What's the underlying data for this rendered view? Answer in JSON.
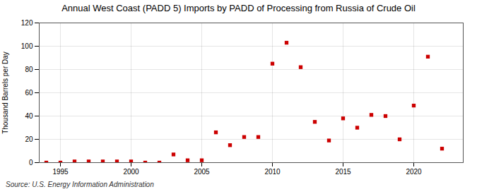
{
  "chart_data": {
    "type": "scatter",
    "title": "Annual West Coast (PADD 5) Imports by PADD of Processing from Russia of Crude Oil",
    "ylabel": "Thousand Barrels per Day",
    "source": "Source: U.S. Energy Information Administration",
    "x": [
      1994,
      1995,
      1996,
      1997,
      1998,
      1999,
      2000,
      2001,
      2002,
      2003,
      2004,
      2005,
      2006,
      2007,
      2008,
      2009,
      2010,
      2011,
      2012,
      2013,
      2014,
      2015,
      2016,
      2017,
      2018,
      2019,
      2020,
      2021,
      2022
    ],
    "values": [
      0,
      0,
      1,
      1,
      1,
      1,
      1,
      0,
      0,
      7,
      2,
      2,
      26,
      15,
      22,
      22,
      85,
      103,
      82,
      35,
      19,
      38,
      30,
      41,
      40,
      20,
      49,
      91,
      12
    ],
    "color": "#cc0000",
    "marker": "square",
    "xlim": [
      1993.5,
      2023.5
    ],
    "xticks": [
      1995,
      2000,
      2005,
      2010,
      2015,
      2020
    ],
    "ylim": [
      0,
      120
    ],
    "yticks": [
      0,
      20,
      40,
      60,
      80,
      100,
      120
    ],
    "grid": true
  }
}
